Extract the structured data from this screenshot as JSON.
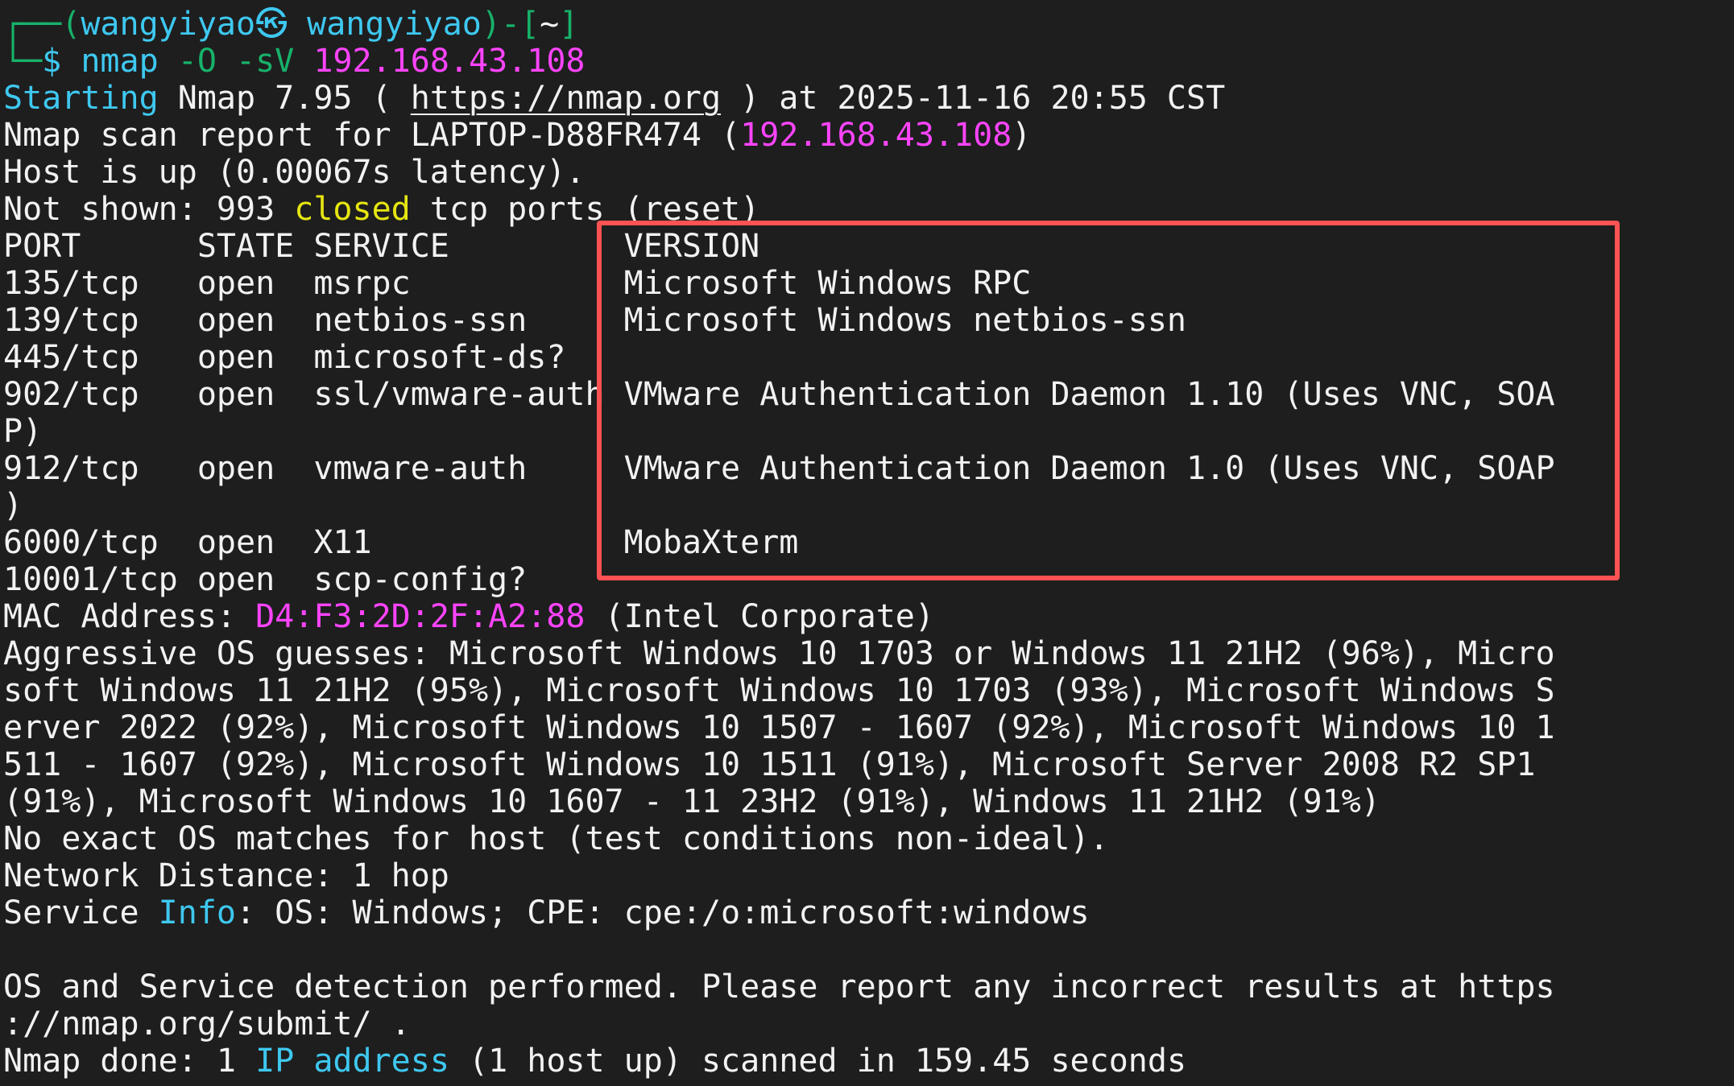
{
  "colors": {
    "background": "#1e1e1e",
    "foreground": "#f2f2f2",
    "cyan": "#3ec8f0",
    "green": "#17b26a",
    "magenta": "#ff44ff",
    "yellow": "#e6e612",
    "highlight_box": "#ff5252"
  },
  "terminal": {
    "lines": [
      [
        {
          "t": "┌──(",
          "c": "green"
        },
        {
          "t": "wangyiyao㉿ wangyiyao",
          "c": "cyan"
        },
        {
          "t": ")-[",
          "c": "green"
        },
        {
          "t": "~",
          "c": "fg"
        },
        {
          "t": "]",
          "c": "green"
        }
      ],
      [
        {
          "t": "└─",
          "c": "green"
        },
        {
          "t": "$ nmap ",
          "c": "cyan"
        },
        {
          "t": "-O -sV ",
          "c": "green"
        },
        {
          "t": "192.168.43.108",
          "c": "magenta"
        }
      ],
      [
        {
          "t": "Starting",
          "c": "cyan"
        },
        {
          "t": " Nmap 7.95 ( ",
          "c": "fg"
        },
        {
          "t": "https://nmap.org",
          "c": "link"
        },
        {
          "t": " ) at 2025-11-16 20:55 CST",
          "c": "fg"
        }
      ],
      [
        {
          "t": "Nmap scan report for LAPTOP-D88FR474 (",
          "c": "fg"
        },
        {
          "t": "192.168.43.108",
          "c": "magenta"
        },
        {
          "t": ")",
          "c": "fg"
        }
      ],
      [
        {
          "t": "Host is up (0.00067s latency).",
          "c": "fg"
        }
      ],
      [
        {
          "t": "Not shown: 993 ",
          "c": "fg"
        },
        {
          "t": "closed",
          "c": "yellow"
        },
        {
          "t": " tcp ports (reset)",
          "c": "fg"
        }
      ],
      [
        {
          "t": "PORT      STATE SERVICE         VERSION",
          "c": "fg"
        }
      ],
      [
        {
          "t": "135/tcp   open  msrpc           Microsoft Windows RPC",
          "c": "fg"
        }
      ],
      [
        {
          "t": "139/tcp   open  netbios-ssn     Microsoft Windows netbios-ssn",
          "c": "fg"
        }
      ],
      [
        {
          "t": "445/tcp   open  microsoft-ds?",
          "c": "fg"
        }
      ],
      [
        {
          "t": "902/tcp   open  ssl/vmware-auth VMware Authentication Daemon 1.10 (Uses VNC, SOA",
          "c": "fg"
        }
      ],
      [
        {
          "t": "P)",
          "c": "fg"
        }
      ],
      [
        {
          "t": "912/tcp   open  vmware-auth     VMware Authentication Daemon 1.0 (Uses VNC, SOAP",
          "c": "fg"
        }
      ],
      [
        {
          "t": ")",
          "c": "fg"
        }
      ],
      [
        {
          "t": "6000/tcp  open  X11             MobaXterm",
          "c": "fg"
        }
      ],
      [
        {
          "t": "10001/tcp open  scp-config?",
          "c": "fg"
        }
      ],
      [
        {
          "t": "MAC Address: ",
          "c": "fg"
        },
        {
          "t": "D4:F3:2D:2F:A2:88",
          "c": "magenta"
        },
        {
          "t": " (Intel Corporate)",
          "c": "fg"
        }
      ],
      [
        {
          "t": "Aggressive OS guesses: Microsoft Windows 10 1703 or Windows 11 21H2 (96%), Micro",
          "c": "fg"
        }
      ],
      [
        {
          "t": "soft Windows 11 21H2 (95%), Microsoft Windows 10 1703 (93%), Microsoft Windows S",
          "c": "fg"
        }
      ],
      [
        {
          "t": "erver 2022 (92%), Microsoft Windows 10 1507 - 1607 (92%), Microsoft Windows 10 1",
          "c": "fg"
        }
      ],
      [
        {
          "t": "511 - 1607 (92%), Microsoft Windows 10 1511 (91%), Microsoft Server 2008 R2 SP1",
          "c": "fg"
        }
      ],
      [
        {
          "t": "(91%), Microsoft Windows 10 1607 - 11 23H2 (91%), Windows 11 21H2 (91%)",
          "c": "fg"
        }
      ],
      [
        {
          "t": "No exact OS matches for host (test conditions non-ideal).",
          "c": "fg"
        }
      ],
      [
        {
          "t": "Network Distance: 1 hop",
          "c": "fg"
        }
      ],
      [
        {
          "t": "Service ",
          "c": "fg"
        },
        {
          "t": "Info",
          "c": "cyan"
        },
        {
          "t": ": OS: Windows; CPE: cpe:/o:microsoft:windows",
          "c": "fg"
        }
      ],
      [
        {
          "t": "",
          "c": "fg"
        }
      ],
      [
        {
          "t": "OS and Service detection performed. Please report any incorrect results at https",
          "c": "fg"
        }
      ],
      [
        {
          "t": "://nmap.org/submit/ .",
          "c": "fg"
        }
      ],
      [
        {
          "t": "Nmap done: 1 ",
          "c": "fg"
        },
        {
          "t": "IP address",
          "c": "cyan"
        },
        {
          "t": " (1 host up) scanned in 159.45 seconds",
          "c": "fg"
        }
      ]
    ]
  }
}
